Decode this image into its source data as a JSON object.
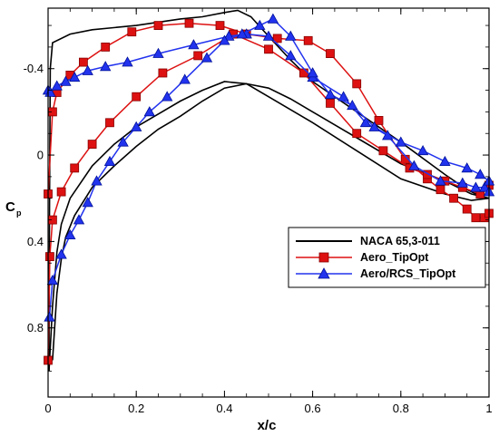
{
  "chart_data": {
    "type": "line",
    "xlabel": "x/c",
    "ylabel_main": "C",
    "ylabel_sub": "p",
    "xlim": [
      0,
      1
    ],
    "ylim": [
      -0.68,
      1.12
    ],
    "y_reversed": true,
    "grid": false,
    "legend_position": "bottom-right",
    "x_ticks": [
      {
        "value": 0,
        "label": "0"
      },
      {
        "value": 0.2,
        "label": "0.2"
      },
      {
        "value": 0.4,
        "label": "0.4"
      },
      {
        "value": 0.6,
        "label": "0.6"
      },
      {
        "value": 0.8,
        "label": "0.8"
      },
      {
        "value": 1,
        "label": "1"
      }
    ],
    "y_ticks": [
      {
        "value": -0.4,
        "label": "-0.4"
      },
      {
        "value": 0,
        "label": "0"
      },
      {
        "value": 0.4,
        "label": "0.4"
      },
      {
        "value": 0.8,
        "label": "0.8"
      }
    ],
    "series": [
      {
        "name": "NACA 65,3-011",
        "color": "#000000",
        "marker": "none",
        "curves": [
          [
            [
              0.002,
              1.0
            ],
            [
              0.003,
              0.3
            ],
            [
              0.005,
              -0.4
            ],
            [
              0.01,
              -0.52
            ],
            [
              0.05,
              -0.56
            ],
            [
              0.1,
              -0.58
            ],
            [
              0.2,
              -0.6
            ],
            [
              0.3,
              -0.63
            ],
            [
              0.35,
              -0.64
            ],
            [
              0.4,
              -0.66
            ],
            [
              0.43,
              -0.67
            ],
            [
              0.46,
              -0.64
            ],
            [
              0.5,
              -0.55
            ],
            [
              0.55,
              -0.44
            ],
            [
              0.6,
              -0.34
            ],
            [
              0.7,
              -0.2
            ],
            [
              0.8,
              -0.06
            ],
            [
              0.9,
              0.09
            ],
            [
              0.95,
              0.16
            ],
            [
              0.98,
              0.19
            ],
            [
              1.0,
              0.18
            ]
          ],
          [
            [
              0.002,
              1.0
            ],
            [
              0.01,
              0.7
            ],
            [
              0.02,
              0.45
            ],
            [
              0.03,
              0.32
            ],
            [
              0.05,
              0.2
            ],
            [
              0.1,
              0.05
            ],
            [
              0.15,
              -0.05
            ],
            [
              0.2,
              -0.13
            ],
            [
              0.25,
              -0.19
            ],
            [
              0.3,
              -0.25
            ],
            [
              0.35,
              -0.3
            ],
            [
              0.4,
              -0.34
            ],
            [
              0.45,
              -0.33
            ],
            [
              0.5,
              -0.27
            ],
            [
              0.6,
              -0.15
            ],
            [
              0.7,
              -0.02
            ],
            [
              0.8,
              0.11
            ],
            [
              0.9,
              0.18
            ],
            [
              0.96,
              0.21
            ],
            [
              1.0,
              0.2
            ]
          ],
          [
            [
              0.01,
              0.95
            ],
            [
              0.02,
              0.64
            ],
            [
              0.03,
              0.48
            ],
            [
              0.04,
              0.38
            ],
            [
              0.06,
              0.28
            ],
            [
              0.1,
              0.15
            ],
            [
              0.15,
              0.05
            ],
            [
              0.2,
              -0.04
            ],
            [
              0.25,
              -0.12
            ],
            [
              0.3,
              -0.18
            ],
            [
              0.35,
              -0.25
            ],
            [
              0.4,
              -0.31
            ],
            [
              0.45,
              -0.33
            ],
            [
              0.5,
              -0.31
            ],
            [
              0.55,
              -0.26
            ],
            [
              0.6,
              -0.2
            ],
            [
              0.7,
              -0.08
            ],
            [
              0.8,
              0.04
            ],
            [
              0.9,
              0.12
            ],
            [
              0.96,
              0.18
            ],
            [
              1.0,
              0.2
            ]
          ]
        ]
      },
      {
        "name": "Aero_TipOpt",
        "color": "#dd1111",
        "marker": "square",
        "upper": {
          "x": [
            0.0,
            0.01,
            0.02,
            0.05,
            0.08,
            0.13,
            0.19,
            0.25,
            0.32,
            0.39,
            0.45,
            0.52,
            0.59,
            0.64,
            0.7,
            0.75,
            0.81,
            0.86,
            0.89,
            0.92,
            0.95,
            0.97,
            0.99,
            1.0
          ],
          "y": [
            0.18,
            -0.2,
            -0.29,
            -0.37,
            -0.43,
            -0.5,
            -0.57,
            -0.6,
            -0.61,
            -0.6,
            -0.56,
            -0.54,
            -0.53,
            -0.47,
            -0.33,
            -0.16,
            0.02,
            0.11,
            0.16,
            0.2,
            0.25,
            0.29,
            0.29,
            0.27
          ]
        },
        "lower": {
          "x": [
            0.0,
            0.004,
            0.01,
            0.03,
            0.06,
            0.1,
            0.14,
            0.2,
            0.26,
            0.34,
            0.42,
            0.5,
            0.58,
            0.64,
            0.7,
            0.76,
            0.82,
            0.86,
            0.9,
            0.94,
            0.98,
            1.0
          ],
          "y": [
            0.95,
            0.47,
            0.3,
            0.17,
            0.06,
            -0.05,
            -0.15,
            -0.27,
            -0.38,
            -0.46,
            -0.56,
            -0.49,
            -0.38,
            -0.24,
            -0.1,
            -0.02,
            0.06,
            0.09,
            0.12,
            0.15,
            0.18,
            0.14
          ]
        }
      },
      {
        "name": "Aero/RCS_TipOpt",
        "color": "#2233ee",
        "marker": "triangle",
        "upper": {
          "x": [
            0.0,
            0.005,
            0.02,
            0.04,
            0.06,
            0.09,
            0.13,
            0.18,
            0.25,
            0.33,
            0.41,
            0.45,
            0.5,
            0.55,
            0.6,
            0.67,
            0.72,
            0.77,
            0.83,
            0.89,
            0.94,
            0.97,
            0.99,
            1.0
          ],
          "y": [
            -0.3,
            -0.29,
            -0.32,
            -0.34,
            -0.36,
            -0.39,
            -0.41,
            -0.43,
            -0.47,
            -0.51,
            -0.55,
            -0.56,
            -0.55,
            -0.46,
            -0.36,
            -0.27,
            -0.15,
            -0.09,
            0.05,
            0.12,
            0.13,
            0.15,
            0.15,
            0.17
          ]
        },
        "lower": {
          "x": [
            0.003,
            0.01,
            0.03,
            0.05,
            0.07,
            0.09,
            0.11,
            0.14,
            0.17,
            0.2,
            0.23,
            0.27,
            0.31,
            0.36,
            0.4,
            0.44,
            0.48,
            0.51,
            0.55,
            0.6,
            0.64,
            0.69,
            0.74,
            0.8,
            0.85,
            0.9,
            0.95,
            0.98,
            1.0
          ],
          "y": [
            0.75,
            0.58,
            0.46,
            0.37,
            0.3,
            0.22,
            0.12,
            0.03,
            -0.06,
            -0.13,
            -0.2,
            -0.27,
            -0.35,
            -0.45,
            -0.53,
            -0.56,
            -0.6,
            -0.63,
            -0.55,
            -0.38,
            -0.28,
            -0.23,
            -0.13,
            -0.06,
            -0.02,
            0.03,
            0.06,
            0.09,
            0.12
          ]
        }
      }
    ]
  }
}
